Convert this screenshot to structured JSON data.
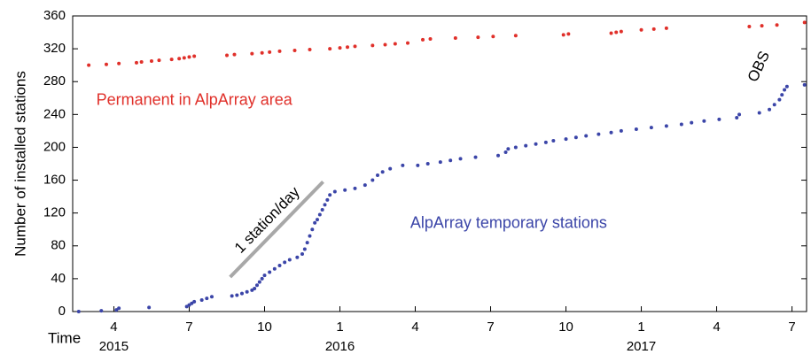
{
  "chart_data": {
    "type": "scatter",
    "ylabel": "Number of installed stations",
    "xlabel": "Time",
    "xlim": [
      1.36,
      30.58
    ],
    "ylim": [
      0,
      360
    ],
    "yticks": [
      0,
      40,
      80,
      120,
      160,
      200,
      240,
      280,
      320,
      360
    ],
    "xticks": [
      {
        "value": 3,
        "label": "4"
      },
      {
        "value": 6,
        "label": "7"
      },
      {
        "value": 9,
        "label": "10"
      },
      {
        "value": 12,
        "label": "1"
      },
      {
        "value": 15,
        "label": "4"
      },
      {
        "value": 18,
        "label": "7"
      },
      {
        "value": 21,
        "label": "10"
      },
      {
        "value": 24,
        "label": "1"
      },
      {
        "value": 27,
        "label": "4"
      },
      {
        "value": 30,
        "label": "7"
      }
    ],
    "year_labels": [
      {
        "value": 3,
        "label": "2015"
      },
      {
        "value": 12,
        "label": "2016"
      },
      {
        "value": 24,
        "label": "2017"
      }
    ],
    "series": [
      {
        "name": "Permanent in AlpArray area",
        "color": "#e0302a",
        "label_at": [
          2.3,
          257
        ],
        "x": [
          2.0,
          2.7,
          3.2,
          3.9,
          4.1,
          4.5,
          4.8,
          5.3,
          5.6,
          5.8,
          6.0,
          6.2,
          7.5,
          7.8,
          8.5,
          8.9,
          9.2,
          9.6,
          10.2,
          10.8,
          11.6,
          12.0,
          12.3,
          12.6,
          13.3,
          13.8,
          14.2,
          14.7,
          15.3,
          15.6,
          16.6,
          17.5,
          18.1,
          19.0,
          20.9,
          21.1,
          22.8,
          23.0,
          23.2,
          24.0,
          24.5,
          25.0,
          28.3,
          28.8,
          29.4,
          30.5
        ],
        "values": [
          300,
          301,
          302,
          303,
          304,
          305,
          306,
          307,
          308,
          309,
          310,
          311,
          312,
          313,
          314,
          315,
          316,
          317,
          318,
          319,
          320,
          321,
          322,
          323,
          324,
          325,
          326,
          327,
          331,
          332,
          333,
          334,
          335,
          336,
          337,
          338,
          339,
          340,
          341,
          343,
          344,
          345,
          347,
          348,
          349,
          352
        ]
      },
      {
        "name": "AlpArray temporary stations",
        "color": "#3b45a8",
        "label_at": [
          14.8,
          107
        ],
        "x": [
          1.6,
          2.5,
          3.1,
          3.2,
          4.4,
          5.9,
          6.0,
          6.1,
          6.2,
          6.5,
          6.7,
          6.9,
          7.7,
          7.9,
          8.1,
          8.3,
          8.5,
          8.6,
          8.7,
          8.8,
          8.9,
          9.0,
          9.2,
          9.4,
          9.6,
          9.8,
          10.0,
          10.3,
          10.5,
          10.6,
          10.7,
          10.8,
          10.9,
          11.0,
          11.1,
          11.2,
          11.3,
          11.4,
          11.5,
          11.6,
          11.8,
          12.2,
          12.6,
          13.0,
          13.3,
          13.5,
          13.7,
          14.0,
          14.5,
          15.1,
          15.5,
          16.0,
          16.4,
          16.8,
          17.4,
          18.3,
          18.6,
          18.7,
          19.0,
          19.4,
          19.8,
          20.2,
          20.5,
          21.0,
          21.4,
          21.8,
          22.3,
          22.8,
          23.2,
          23.8,
          24.4,
          25.0,
          25.6,
          26.0,
          26.5,
          27.1,
          27.8,
          27.9,
          28.7,
          29.1,
          29.3,
          29.5,
          29.6,
          29.7,
          29.8,
          30.5
        ],
        "values": [
          0,
          1,
          2,
          4,
          5,
          6,
          8,
          10,
          12,
          14,
          16,
          18,
          19,
          20,
          22,
          24,
          26,
          28,
          32,
          36,
          40,
          44,
          48,
          52,
          56,
          60,
          63,
          66,
          70,
          76,
          84,
          92,
          100,
          108,
          112,
          118,
          124,
          130,
          136,
          142,
          146,
          148,
          150,
          154,
          160,
          166,
          170,
          174,
          178,
          178,
          180,
          182,
          184,
          186,
          188,
          190,
          194,
          198,
          200,
          202,
          204,
          206,
          208,
          210,
          212,
          214,
          216,
          218,
          220,
          222,
          224,
          226,
          228,
          230,
          232,
          234,
          236,
          240,
          242,
          246,
          252,
          258,
          264,
          270,
          274,
          276
        ]
      }
    ],
    "reference_line": {
      "label": "1 station/day",
      "color": "#a8a8a8",
      "x": [
        7.63,
        11.33
      ],
      "y": [
        42,
        158
      ]
    },
    "annotation": {
      "text": "OBS",
      "x": 28.7,
      "y": 298
    }
  }
}
